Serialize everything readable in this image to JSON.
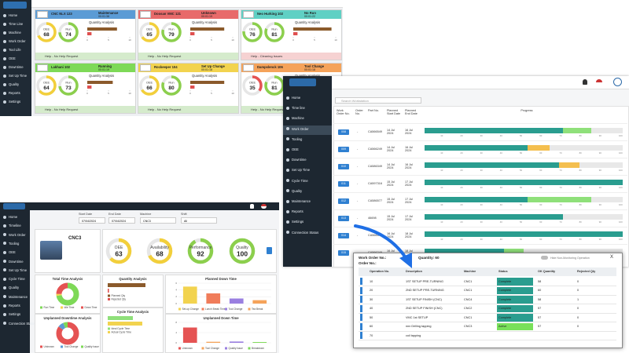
{
  "dashboard": {
    "menu": [
      "Home",
      "Time Line",
      "Machine",
      "Work Order",
      "Tool Life",
      "OEE",
      "Downtime",
      "Set Up Time",
      "Quality",
      "Reports",
      "Settings"
    ],
    "gauge_labels": [
      "OEE",
      "Run"
    ],
    "analysis_title": "Quantity Analysis",
    "qty_ticks": [
      0,
      5,
      10
    ],
    "cards": [
      {
        "name": "CNC NLX 123",
        "status": "Maintenance",
        "time": "00:01:38",
        "color": "#5b9bd5",
        "oee": 68,
        "run": 74,
        "qty": [
          7,
          1
        ],
        "help": "Help - No Help Request",
        "help_color": "#d5ebcc"
      },
      {
        "name": "Doosan VMC 121",
        "status": "Unknown",
        "time": "00:01:19",
        "color": "#e86a6a",
        "oee": 65,
        "run": 79,
        "qty": [
          8,
          1
        ],
        "help": "Help - No Help Request",
        "help_color": "#d5ebcc"
      },
      {
        "name": "Neo Hurking 102",
        "status": "No Run",
        "time": "00:01:22",
        "color": "#5fd0c4",
        "oee": 76,
        "run": 81,
        "qty": [
          9,
          1
        ],
        "help": "Help - Cleaning Issues",
        "help_color": "#f6d2d2"
      },
      {
        "name": "Lakhani 102",
        "status": "Running",
        "time": "00:01:19",
        "color": "#7ed957",
        "oee": 64,
        "run": 73,
        "qty": [
          6,
          1
        ],
        "help": "Help - No Help Request",
        "help_color": "#d5ebcc"
      },
      {
        "name": "Rockeeper 104",
        "status": "Set Up Change",
        "time": "00:01:18",
        "color": "#f2d34f",
        "oee": 66,
        "run": 80,
        "qty": [
          8,
          1
        ],
        "help": "Help - No Help Request",
        "help_color": "#d5ebcc"
      },
      {
        "name": "Dampslenck 106",
        "status": "Tool Change",
        "time": "00:01:18",
        "color": "#f5a35a",
        "oee": 35,
        "run": 81,
        "qty": [
          7,
          1
        ],
        "help": "Help - No Help Request",
        "help_color": "#d5ebcc"
      }
    ]
  },
  "work_orders": {
    "menu": [
      "Home",
      "Time line",
      "Machine",
      "Work Order",
      "Tooling",
      "OEE",
      "Downtime",
      "Set Up Time",
      "Cycle Time",
      "Quality",
      "Maintenance",
      "Reports",
      "Settings",
      "Connection Status"
    ],
    "search": "Search Workstation",
    "columns": [
      "Work Order No.",
      "Order No.",
      "Part No.",
      "Planned Start Date",
      "Planned End Date",
      "Progress"
    ],
    "progress_lim": [
      0,
      100
    ],
    "progress_ticks": [
      10,
      20,
      30,
      40,
      50,
      60,
      70,
      80,
      90,
      100
    ],
    "rows": [
      {
        "work_order": "008",
        "order": "-",
        "part": "CA566549",
        "start": "14 Jul 2024",
        "end": "16 Jul 2024",
        "done": 70,
        "active": 14,
        "active_color": "#8fe07a"
      },
      {
        "work_order": "009",
        "order": "-",
        "part": "CA566249",
        "start": "14 Jul 2024",
        "end": "16 Jul 2024",
        "done": 52,
        "active": 11,
        "active_color": "#f4bf4f"
      },
      {
        "work_order": "010",
        "order": "-",
        "part": "CA586349",
        "start": "14 Jul 2024",
        "end": "16 Jul 2024",
        "done": 68,
        "active": 10,
        "active_color": "#f4bf4f"
      },
      {
        "work_order": "011",
        "order": "-",
        "part": "CA597316",
        "start": "15 Jul 2024",
        "end": "17 Jul 2024",
        "done": 100,
        "active": 0,
        "active_color": "#8fe07a"
      },
      {
        "work_order": "012",
        "order": "-",
        "part": "CA586577",
        "start": "15 Jul 2024",
        "end": "17 Jul 2024",
        "done": 52,
        "active": 32,
        "active_color": "#8fe07a"
      },
      {
        "work_order": "013",
        "order": "-",
        "part": "46698",
        "start": "15 Jul 2024",
        "end": "17 Jul 2024",
        "done": 70,
        "active": 0,
        "active_color": "#8fe07a"
      },
      {
        "work_order": "014",
        "order": "-",
        "part": "CA566549",
        "start": "16 Jul 2024",
        "end": "18 Jul 2024",
        "done": 100,
        "active": 0,
        "active_color": "#8fe07a"
      },
      {
        "work_order": "015",
        "order": "-",
        "part": "CA566249",
        "start": "16 Jul 2024",
        "end": "18 Jul 2024",
        "done": 40,
        "active": 10,
        "active_color": "#8fe07a"
      }
    ]
  },
  "machine_dashboard": {
    "menu": [
      "Home",
      "Timeline",
      "Work Order",
      "Tooling",
      "OEE",
      "Downtime",
      "Set Up Time",
      "Cycle Time",
      "Quality",
      "Maintenance",
      "Reports",
      "Settings",
      "Connection Status"
    ],
    "filters": [
      {
        "label": "Start Date",
        "value": "07/04/2024"
      },
      {
        "label": "End Date",
        "value": "07/04/2024"
      },
      {
        "label": "Machine",
        "value": "CNC3"
      },
      {
        "label": "Shift",
        "value": "All"
      }
    ],
    "machine": "CNC3",
    "gauges": [
      {
        "label": "OEE",
        "value": 63
      },
      {
        "label": "Availability",
        "value": 68
      },
      {
        "label": "Performance",
        "value": 92
      },
      {
        "label": "Quality",
        "value": 100
      }
    ],
    "total_time": {
      "title": "Total Time Analysis",
      "items": [
        {
          "name": "Run Time",
          "value": 72,
          "color": "#7ed957"
        },
        {
          "name": "Idle Time",
          "value": 3,
          "color": "#f2d34f"
        },
        {
          "name": "Down Time",
          "value": 25,
          "color": "#e55353"
        }
      ]
    },
    "unplanned_analysis": {
      "title": "Unplanned Downtime Analysis",
      "items": [
        {
          "name": "Unknown",
          "value": 85,
          "color": "#e55353"
        },
        {
          "name": "Tool Change",
          "value": 8,
          "color": "#5b9bd5"
        },
        {
          "name": "Quality Issue",
          "value": 7,
          "color": "#7ed957"
        }
      ]
    },
    "quantity": {
      "title": "Quantity Analysis",
      "xlim": [
        0,
        80
      ],
      "items": [
        {
          "name": "Planned Qty",
          "value": 60,
          "color": "#8b5a2b"
        },
        {
          "name": "Rejected Qty",
          "value": 2,
          "color": "#e05050"
        }
      ]
    },
    "cycle_time": {
      "title": "Cycle Time Analysis",
      "xlim": [
        0,
        80
      ],
      "items": [
        {
          "name": "Ideal Cycle Time",
          "value": 40,
          "color": "#8fe07a"
        },
        {
          "name": "Actual Cycle Time",
          "value": 55,
          "color": "#f2d34f"
        }
      ]
    },
    "planned_down": {
      "title": "Planned Down Time",
      "ylim": [
        0,
        6
      ],
      "yticks": [
        0,
        2,
        4,
        6
      ],
      "items": [
        {
          "name": "Set-up Change",
          "value": 5,
          "color": "#f2d34f"
        },
        {
          "name": "Lunch Break Time",
          "value": 3,
          "color": "#f07c5a"
        },
        {
          "name": "Tool Change",
          "value": 1.5,
          "color": "#9a7fe0"
        },
        {
          "name": "Tea Break",
          "value": 1,
          "color": "#f5a35a"
        }
      ]
    },
    "unplanned_down": {
      "title": "Unplanned Down Time",
      "ylim": [
        0,
        8
      ],
      "yticks": [
        0,
        4,
        8
      ],
      "items": [
        {
          "name": "Unknown",
          "value": 6,
          "color": "#e55353"
        },
        {
          "name": "Tool Change",
          "value": 0.4,
          "color": "#f5a35a"
        },
        {
          "name": "Quality Issue",
          "value": 0.5,
          "color": "#9a7fe0"
        },
        {
          "name": "Breakdown",
          "value": 0.3,
          "color": "#7ed957"
        }
      ]
    }
  },
  "operations": {
    "work_order_label": "Work Order No.:",
    "order_label": "Order No.:",
    "quantity": "Quantity: 60",
    "toggle": "Hide Non-Monitoring Operation",
    "close_label": "X",
    "columns": [
      "Operation No.",
      "Description",
      "Machine",
      "Status",
      "OK Quantity",
      "Rejected Qty"
    ],
    "rows": [
      {
        "op": 10,
        "desc": "1ST SETUP PRE-TURNING",
        "machine": "CNC1",
        "status": "Complete",
        "status_color": "#2a9d8f",
        "ok": 58,
        "rejected": 0
      },
      {
        "op": 20,
        "desc": "2ND SETUP PRE-TURNING",
        "machine": "CNC1",
        "status": "Complete",
        "status_color": "#2a9d8f",
        "ok": 60,
        "rejected": 0
      },
      {
        "op": 30,
        "desc": "1ST SETUP FINISH (CNC)",
        "machine": "CNC4",
        "status": "Complete",
        "status_color": "#2a9d8f",
        "ok": 58,
        "rejected": 1
      },
      {
        "op": 40,
        "desc": "2ND SETUP FINISH (CNC)",
        "machine": "CNC2",
        "status": "Complete",
        "status_color": "#2a9d8f",
        "ok": 57,
        "rejected": 0
      },
      {
        "op": 50,
        "desc": "VMC 1st SETUP",
        "machine": "CNC1",
        "status": "Complete",
        "status_color": "#2a9d8f",
        "ok": 57,
        "rejected": 0
      },
      {
        "op": 60,
        "desc": "nnn Drilling tapping",
        "machine": "CNC3",
        "status": "Active",
        "status_color": "#79e05a",
        "ok": 57,
        "rejected": 0
      },
      {
        "op": 70,
        "desc": "coil tapping"
      }
    ]
  }
}
